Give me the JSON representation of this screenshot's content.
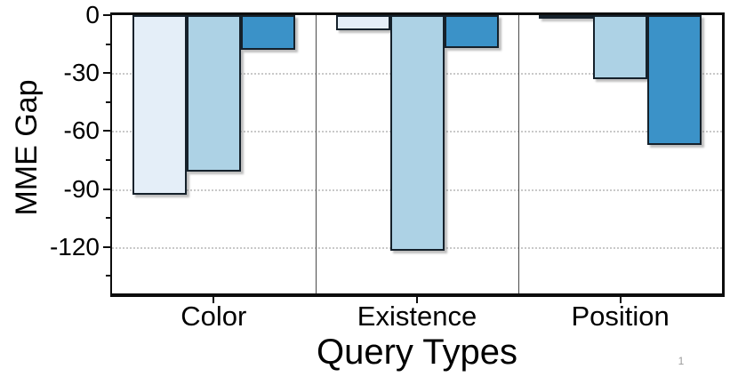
{
  "chart_data": {
    "type": "bar",
    "title": "",
    "xlabel": "Query Types",
    "ylabel": "MME Gap",
    "categories": [
      "Color",
      "Existence",
      "Position"
    ],
    "series": [
      {
        "name": "series-1-lightest",
        "color": "#E4EEF8",
        "values": [
          -93,
          -8,
          -2
        ]
      },
      {
        "name": "series-2-light",
        "color": "#ADD2E5",
        "values": [
          -81,
          -122,
          -33
        ]
      },
      {
        "name": "series-3-dark",
        "color": "#3B92C8",
        "values": [
          -18,
          -17,
          -67
        ]
      }
    ],
    "ylim": [
      -144,
      0
    ],
    "yticks_major": [
      0,
      -30,
      -60,
      -90,
      -120
    ],
    "yticks_minor": [
      -15,
      -45,
      -75,
      -105,
      -135
    ],
    "ytick_labels": [
      "0",
      "-30",
      "-60",
      "-90",
      "-120"
    ],
    "grid": "horizontal dotted at major ticks",
    "legend": "none",
    "colors": {
      "axis_frame": "#0d0d0d",
      "bar_edge": "#15212b",
      "gridline": "#c9c9c9",
      "category_separator": "#4a4a4a",
      "watermark_gray": "#9b9b9b"
    }
  },
  "watermark": "1"
}
